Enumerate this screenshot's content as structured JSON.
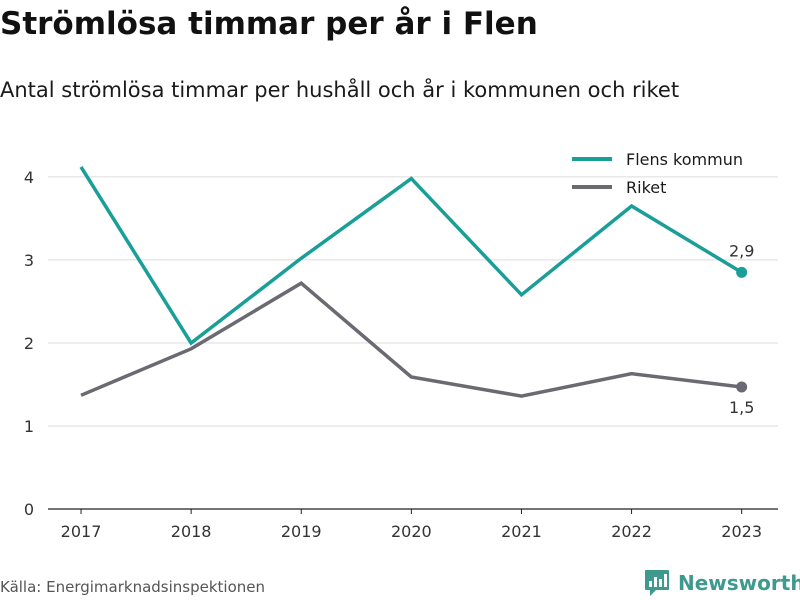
{
  "title": "Strömlösa timmar per år i Flen",
  "subtitle": "Antal strömlösa timmar per hushåll och år i kommunen och riket",
  "source": "Källa: Energimarknadsinspektionen",
  "brand": {
    "name": "Newsworthy",
    "icon": "newsworthy-chart-icon",
    "color": "#3e9a8e"
  },
  "chart_data": {
    "type": "line",
    "title": "",
    "xlabel": "",
    "ylabel": "",
    "x": [
      2017,
      2018,
      2019,
      2020,
      2021,
      2022,
      2023
    ],
    "xlim": [
      2016.7,
      2023.33
    ],
    "ylim": [
      0,
      4.3
    ],
    "yticks": [
      0,
      1,
      2,
      3,
      4
    ],
    "grid": true,
    "legend_position": "top-right",
    "series": [
      {
        "name": "Flens kommun",
        "color": "#1a9e98",
        "values": [
          4.12,
          2.0,
          3.02,
          3.98,
          2.58,
          3.65,
          2.85
        ],
        "end_label": "2,9"
      },
      {
        "name": "Riket",
        "color": "#6b6a73",
        "values": [
          1.37,
          1.93,
          2.72,
          1.59,
          1.36,
          1.63,
          1.47
        ],
        "end_label": "1,5"
      }
    ]
  }
}
